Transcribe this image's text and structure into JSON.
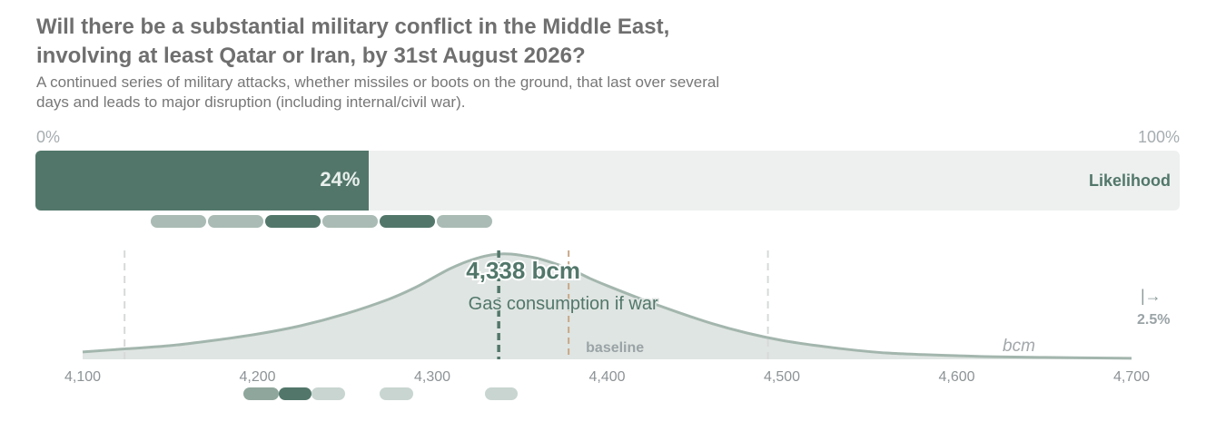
{
  "title": "Will there be a substantial military conflict in the Middle East, involving at least Qatar or Iran, by 31st August 2026?",
  "subtitle": "A continued series of military attacks, whether missiles or boots on the ground, that last over several days and leads to major disruption (including internal/civil war).",
  "likelihood": {
    "min_label": "0%",
    "max_label": "100%",
    "value": 24,
    "value_label": "24%",
    "label": "Likelihood"
  },
  "colors": {
    "dark": "#52776a",
    "mid": "#8fa69c",
    "light": "#a9bbb4",
    "pale": "#c8d5d0",
    "track": "#edf0ef",
    "baseline": "#c9a788",
    "curve": "#a3b6ae",
    "fill": "#dfe5e2"
  },
  "upper_pills": [
    "light",
    "light",
    "dark",
    "light",
    "dark",
    "light"
  ],
  "chart_data": {
    "type": "area",
    "xlabel": "bcm",
    "x_ticks": [
      "4,100",
      "4,200",
      "4,300",
      "4,400",
      "4,500",
      "4,600",
      "4,700"
    ],
    "xlim": [
      4100,
      4700
    ],
    "curve": {
      "x": [
        4100,
        4125,
        4150,
        4175,
        4200,
        4225,
        4250,
        4275,
        4290,
        4300,
        4310,
        4320,
        4330,
        4338,
        4345,
        4350,
        4360,
        4370,
        4380,
        4390,
        4400,
        4420,
        4440,
        4460,
        4480,
        4500,
        4520,
        4540,
        4560,
        4580,
        4600,
        4620,
        4650,
        4700
      ],
      "y": [
        0.07,
        0.1,
        0.13,
        0.18,
        0.24,
        0.32,
        0.43,
        0.57,
        0.68,
        0.77,
        0.86,
        0.93,
        0.98,
        1.0,
        1.0,
        0.99,
        0.96,
        0.91,
        0.85,
        0.77,
        0.7,
        0.57,
        0.45,
        0.34,
        0.25,
        0.18,
        0.13,
        0.09,
        0.06,
        0.045,
        0.035,
        0.025,
        0.018,
        0.01
      ]
    },
    "interval": [
      4124,
      4492
    ],
    "median": {
      "value": 4338,
      "label": "4,338 bcm",
      "caption": "Gas consumption if war"
    },
    "baseline": {
      "value": 4378,
      "label": "baseline"
    },
    "tail_marker": {
      "symbol": "|→",
      "value_label": "2.5%"
    },
    "lower_pills": [
      {
        "from": 4192,
        "to": 4212,
        "tone": "mid"
      },
      {
        "from": 4212,
        "to": 4231,
        "tone": "dark"
      },
      {
        "from": 4231,
        "to": 4250,
        "tone": "pale"
      },
      {
        "from": 4270,
        "to": 4289,
        "tone": "pale"
      },
      {
        "from": 4330,
        "to": 4349,
        "tone": "pale"
      }
    ]
  }
}
